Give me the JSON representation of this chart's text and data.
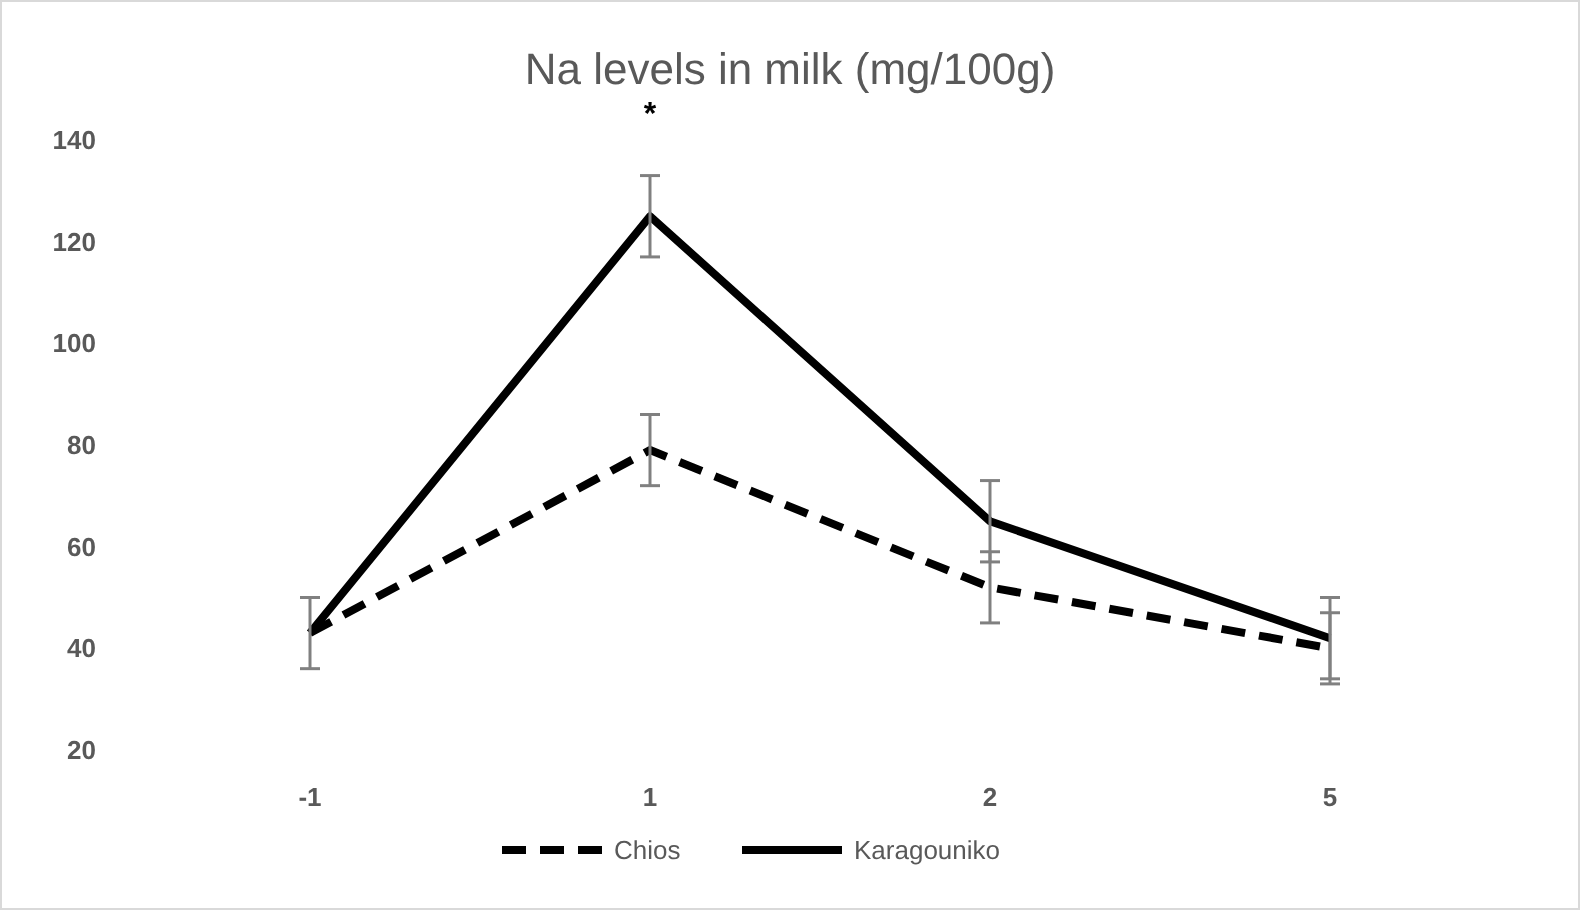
{
  "chart_data": {
    "type": "line",
    "title": "Na levels in milk (mg/100g)",
    "categories": [
      "-1",
      "1",
      "2",
      "5"
    ],
    "series": [
      {
        "name": "Chios",
        "color": "#000000",
        "line_style": "dashed",
        "values": [
          43,
          79,
          52,
          40
        ],
        "errors": [
          null,
          7,
          7,
          7
        ]
      },
      {
        "name": "Karagouniko",
        "color": "#000000",
        "line_style": "solid",
        "values": [
          43,
          125,
          65,
          42
        ],
        "errors": [
          7,
          8,
          8,
          8
        ]
      }
    ],
    "ylim": [
      20,
      140
    ],
    "yticks": [
      20,
      40,
      60,
      80,
      100,
      120,
      140
    ],
    "grid": false,
    "legend": "bottom",
    "marker": "none",
    "annotations": [
      "*"
    ]
  }
}
